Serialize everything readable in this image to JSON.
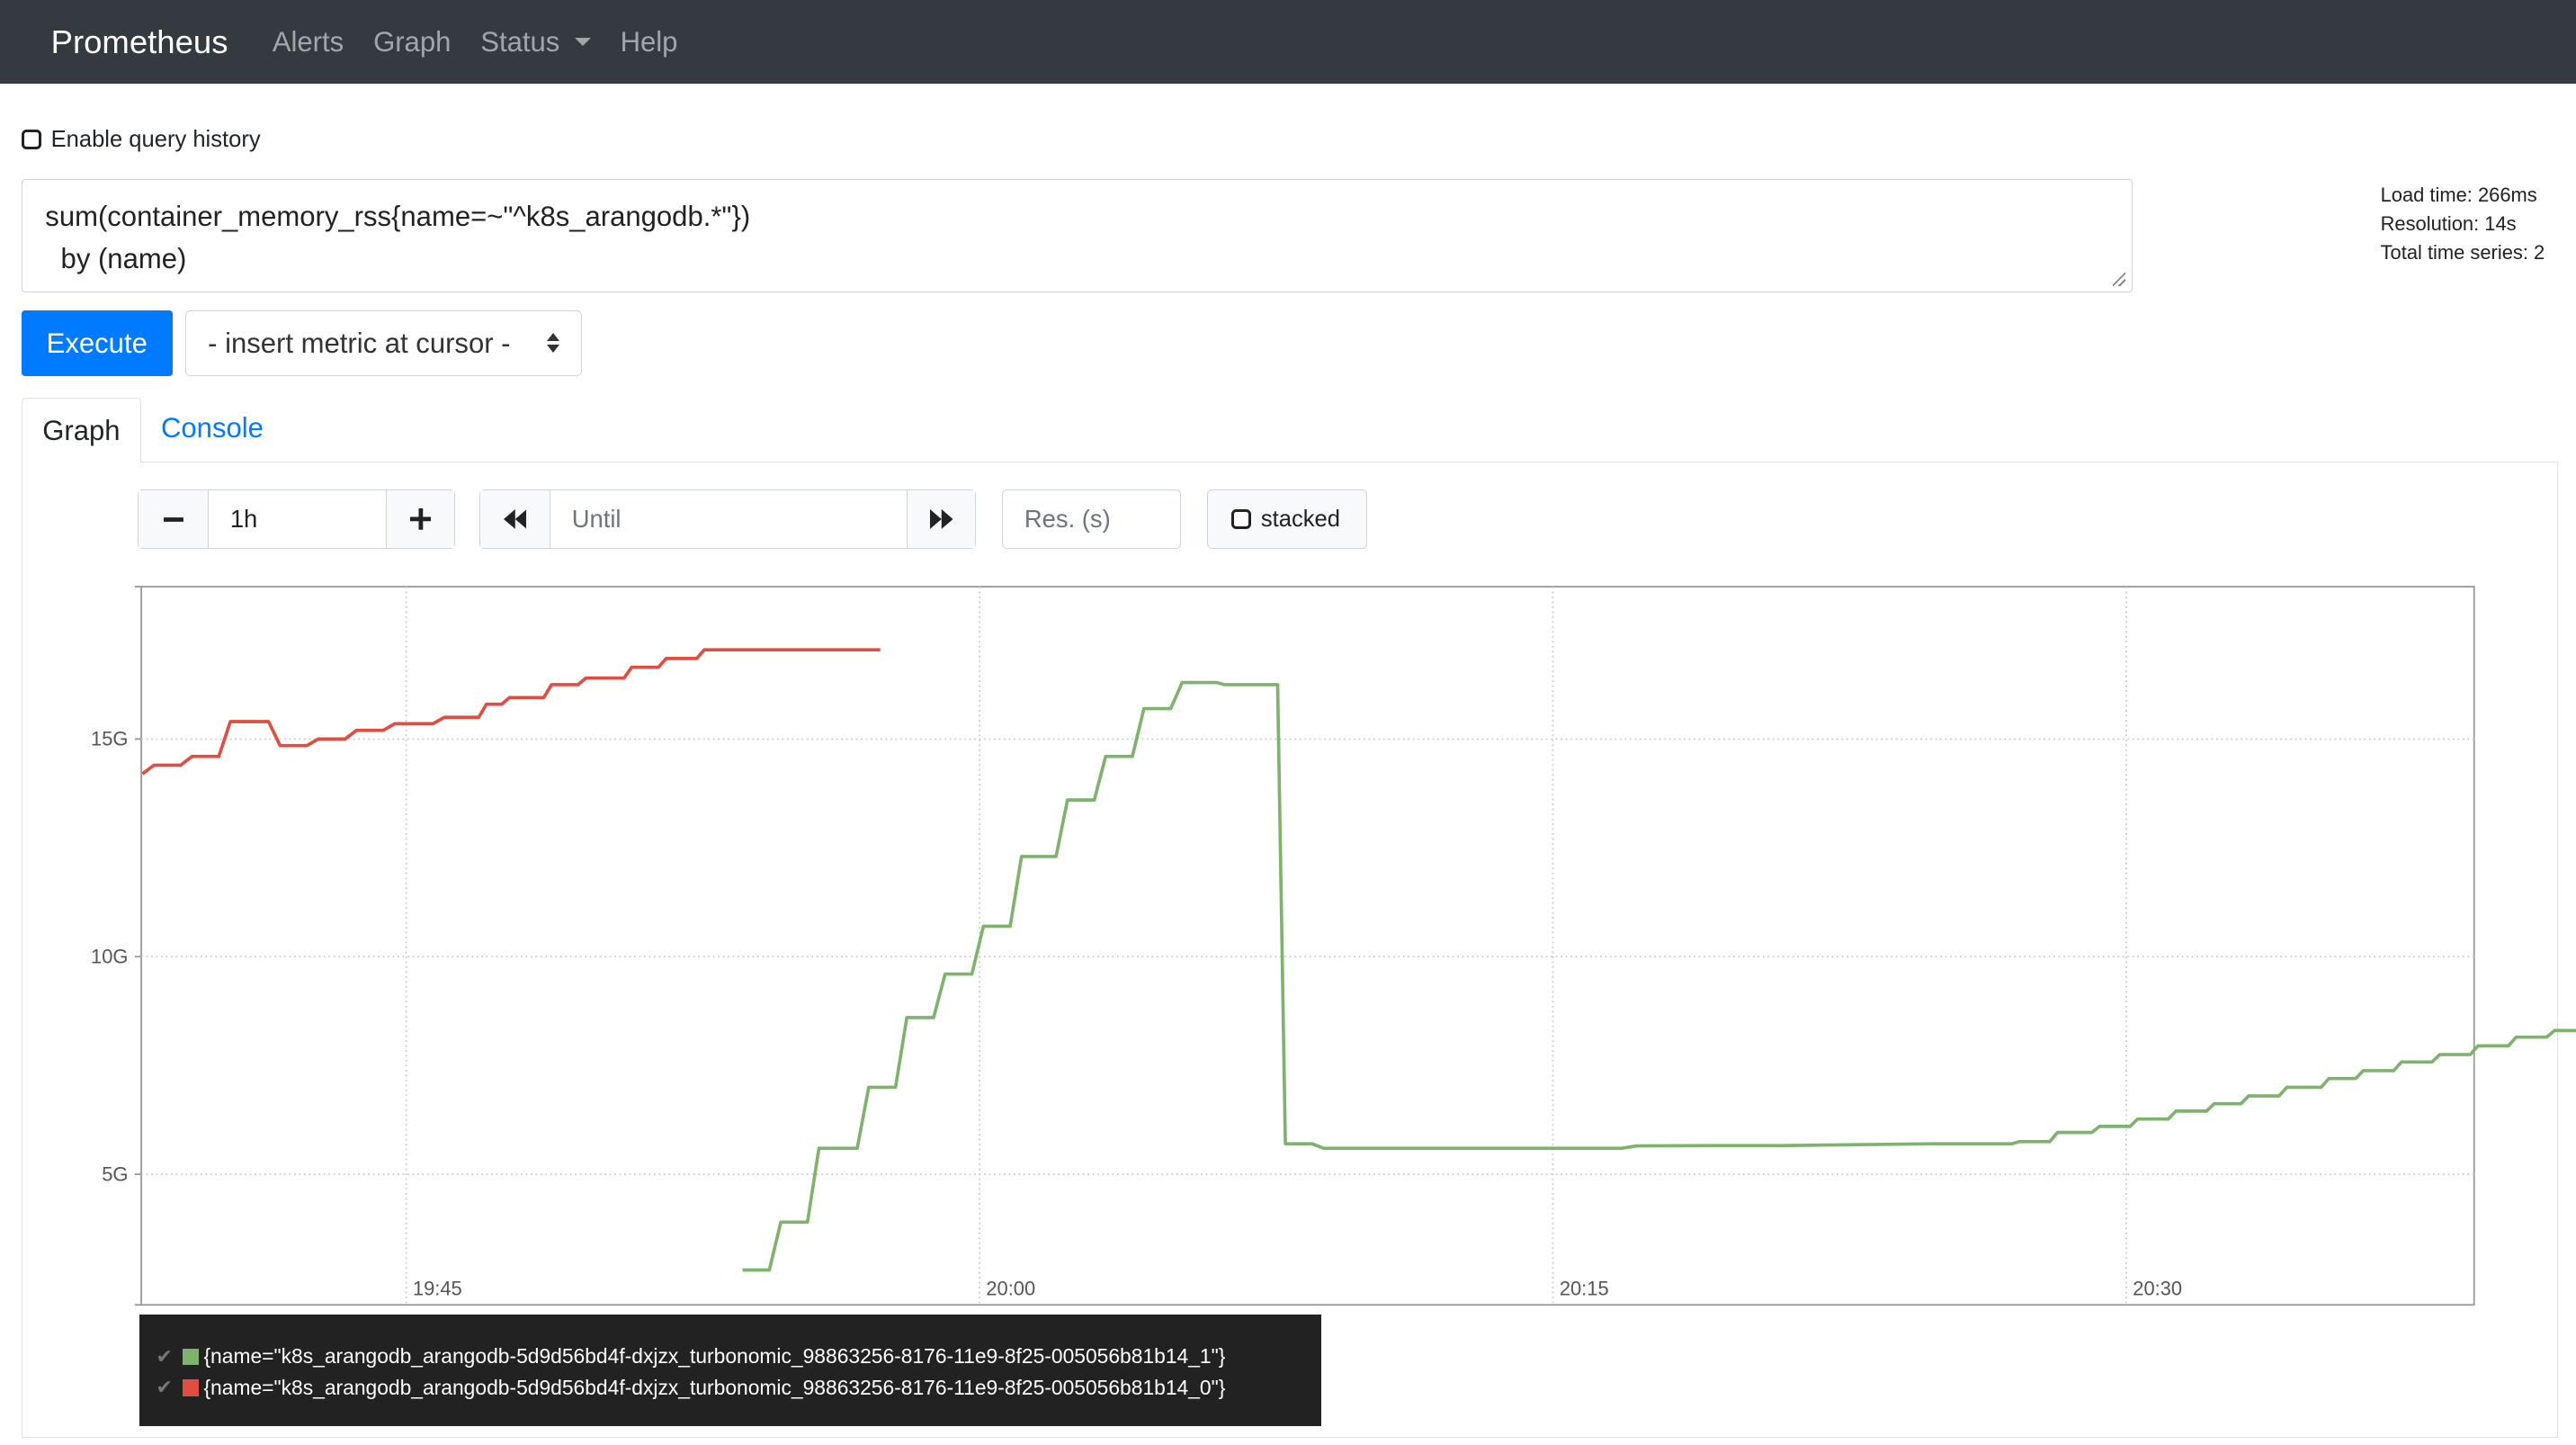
{
  "navbar": {
    "brand": "Prometheus",
    "links": [
      "Alerts",
      "Graph",
      "Status",
      "Help"
    ]
  },
  "query_history": {
    "label": "Enable query history",
    "checked": false
  },
  "expression": "sum(container_memory_rss{name=~\"^k8s_arangodb.*\"})\n  by (name)",
  "stats": {
    "load_time": "Load time: 266ms",
    "resolution": "Resolution: 14s",
    "total_series": "Total time series: 2"
  },
  "execute_label": "Execute",
  "metric_select": "- insert metric at cursor -",
  "tabs": {
    "graph": "Graph",
    "console": "Console"
  },
  "controls": {
    "range": "1h",
    "until_placeholder": "Until",
    "res_placeholder": "Res. (s)",
    "stacked_label": "stacked",
    "stacked_checked": false
  },
  "chart_data": {
    "type": "line",
    "x_ticks": [
      "19:45",
      "20:00",
      "20:15",
      "20:30"
    ],
    "y_ticks": [
      "5G",
      "10G",
      "15G"
    ],
    "y_unit": "bytes (G)",
    "ylim": [
      2.0,
      18.5
    ],
    "x_range_minutes": [
      -6.93,
      54.1
    ],
    "x_axis_origin": "19:45 = 0 min",
    "grid": true,
    "series": [
      {
        "name": "{name=\"k8s_arangodb_arangodb-5d9d56bd4f-dxjzx_turbonomic_98863256-8176-11e9-8f25-005056b81b14_1\"}",
        "color": "#7eb26d",
        "points": [
          [
            8.8,
            2.8
          ],
          [
            9.5,
            2.8
          ],
          [
            9.8,
            3.9
          ],
          [
            10.5,
            3.9
          ],
          [
            10.8,
            5.6
          ],
          [
            11.8,
            5.6
          ],
          [
            12.1,
            7.0
          ],
          [
            12.8,
            7.0
          ],
          [
            13.1,
            8.6
          ],
          [
            13.8,
            8.6
          ],
          [
            14.1,
            9.6
          ],
          [
            14.8,
            9.6
          ],
          [
            15.1,
            10.7
          ],
          [
            15.8,
            10.7
          ],
          [
            16.1,
            12.3
          ],
          [
            17.0,
            12.3
          ],
          [
            17.3,
            13.6
          ],
          [
            18.0,
            13.6
          ],
          [
            18.3,
            14.6
          ],
          [
            19.0,
            14.6
          ],
          [
            19.3,
            15.7
          ],
          [
            20.0,
            15.7
          ],
          [
            20.3,
            16.3
          ],
          [
            21.2,
            16.3
          ],
          [
            21.4,
            16.25
          ],
          [
            22.8,
            16.25
          ],
          [
            23.0,
            5.7
          ],
          [
            23.7,
            5.7
          ],
          [
            24.0,
            5.6
          ],
          [
            28.0,
            5.6
          ],
          [
            31.8,
            5.6
          ],
          [
            32.2,
            5.65
          ],
          [
            34.0,
            5.66
          ],
          [
            36.0,
            5.66
          ],
          [
            38.0,
            5.68
          ],
          [
            40.0,
            5.7
          ],
          [
            42.0,
            5.7
          ],
          [
            42.2,
            5.75
          ],
          [
            43.0,
            5.75
          ],
          [
            43.2,
            5.96
          ],
          [
            44.1,
            5.96
          ],
          [
            44.3,
            6.1
          ],
          [
            45.1,
            6.1
          ],
          [
            45.3,
            6.27
          ],
          [
            46.1,
            6.27
          ],
          [
            46.3,
            6.45
          ],
          [
            47.1,
            6.45
          ],
          [
            47.3,
            6.62
          ],
          [
            48.0,
            6.62
          ],
          [
            48.2,
            6.8
          ],
          [
            49.0,
            6.8
          ],
          [
            49.2,
            7.0
          ],
          [
            50.1,
            7.0
          ],
          [
            50.3,
            7.2
          ],
          [
            51.0,
            7.2
          ],
          [
            51.2,
            7.38
          ],
          [
            52.0,
            7.38
          ],
          [
            52.2,
            7.58
          ],
          [
            53.0,
            7.58
          ],
          [
            53.2,
            7.75
          ],
          [
            54.0,
            7.75
          ],
          [
            54.2,
            7.95
          ],
          [
            55.0,
            7.95
          ],
          [
            55.2,
            8.15
          ],
          [
            56.0,
            8.15
          ],
          [
            56.2,
            8.3
          ],
          [
            57.0,
            8.3
          ],
          [
            57.2,
            8.47
          ],
          [
            58.0,
            8.47
          ],
          [
            58.2,
            8.65
          ],
          [
            59.0,
            8.65
          ],
          [
            59.2,
            8.8
          ],
          [
            59.6,
            8.8
          ]
        ]
      },
      {
        "name": "{name=\"k8s_arangodb_arangodb-5d9d56bd4f-dxjzx_turbonomic_98863256-8176-11e9-8f25-005056b81b14_0\"}",
        "color": "#e24d42",
        "points": [
          [
            -6.9,
            14.2
          ],
          [
            -6.6,
            14.4
          ],
          [
            -5.9,
            14.4
          ],
          [
            -5.6,
            14.6
          ],
          [
            -4.9,
            14.6
          ],
          [
            -4.6,
            15.4
          ],
          [
            -3.6,
            15.4
          ],
          [
            -3.3,
            14.85
          ],
          [
            -2.6,
            14.85
          ],
          [
            -2.3,
            15.0
          ],
          [
            -1.6,
            15.0
          ],
          [
            -1.3,
            15.2
          ],
          [
            -0.6,
            15.2
          ],
          [
            -0.3,
            15.35
          ],
          [
            0.7,
            15.35
          ],
          [
            1.0,
            15.5
          ],
          [
            1.9,
            15.5
          ],
          [
            2.1,
            15.8
          ],
          [
            2.5,
            15.8
          ],
          [
            2.7,
            15.95
          ],
          [
            3.6,
            15.95
          ],
          [
            3.8,
            16.25
          ],
          [
            4.5,
            16.25
          ],
          [
            4.7,
            16.4
          ],
          [
            5.7,
            16.4
          ],
          [
            5.9,
            16.65
          ],
          [
            6.6,
            16.65
          ],
          [
            6.8,
            16.85
          ],
          [
            7.6,
            16.85
          ],
          [
            7.8,
            17.05
          ],
          [
            12.4,
            17.05
          ]
        ]
      }
    ]
  }
}
